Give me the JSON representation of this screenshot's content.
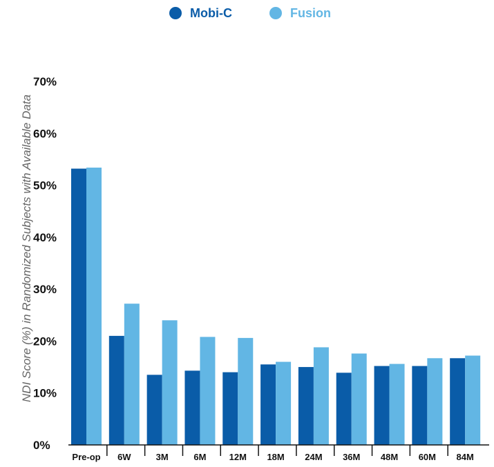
{
  "chart_data": {
    "type": "bar",
    "title": "",
    "xlabel": "",
    "ylabel": "NDI Score (%) in Randomized Subjects with Available Data",
    "ylim": [
      0,
      70
    ],
    "yticks": [
      "0%",
      "10%",
      "20%",
      "30%",
      "40%",
      "50%",
      "60%",
      "70%"
    ],
    "ytick_values": [
      0,
      10,
      20,
      30,
      40,
      50,
      60,
      70
    ],
    "grid": false,
    "legend_position": "top-center",
    "categories": [
      "Pre-op",
      "6W",
      "3M",
      "6M",
      "12M",
      "18M",
      "24M",
      "36M",
      "48M",
      "60M",
      "84M"
    ],
    "series": [
      {
        "name": "Mobi-C",
        "color": "#0a5ca8",
        "values": [
          53.2,
          21.0,
          13.5,
          14.3,
          14.0,
          15.5,
          15.0,
          13.9,
          15.2,
          15.2,
          16.7
        ]
      },
      {
        "name": "Fusion",
        "color": "#62b6e4",
        "values": [
          53.4,
          27.2,
          24.0,
          20.8,
          20.6,
          16.0,
          18.8,
          17.6,
          15.6,
          16.7,
          17.2
        ]
      }
    ]
  }
}
